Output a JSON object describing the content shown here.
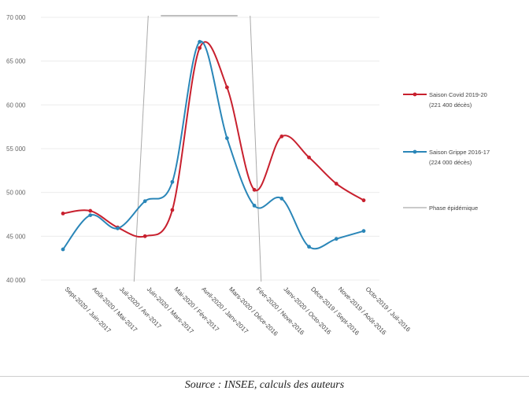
{
  "chart_data": {
    "type": "line",
    "categories": [
      "Sept-2020 / Juin-2017",
      "Août-2020 / Mai-2017",
      "Juil-2020 / Avr-2017",
      "Juin-2020 / Mars-2017",
      "Mai-2020 / Févr-2017",
      "Avril-2020 / Janv-2017",
      "Mars-2020 / Déce-2016",
      "Févr-2020 / Nove-2016",
      "Janv-2020 / Octo-2016",
      "Déce-2019 / Sept-2016",
      "Nove-2019 / Août-2016",
      "Octo-2019 / Juil-2016"
    ],
    "ylim": [
      40000,
      70000
    ],
    "yticks": [
      "40 000",
      "45 000",
      "50 000",
      "55 000",
      "60 000",
      "65 000",
      "70 000"
    ],
    "series": [
      {
        "name": "Saison Covid 2019-20",
        "name_line2": "(221 400 décès)",
        "color": "#c8202e",
        "values": [
          47600,
          47900,
          46000,
          45000,
          48000,
          66500,
          62000,
          50300,
          56400,
          54000,
          51000,
          49100
        ]
      },
      {
        "name": "Saison Grippe 2016-17",
        "name_line2": "(224 000 décès)",
        "color": "#2a86b8",
        "values": [
          43500,
          47400,
          45900,
          49000,
          51200,
          67200,
          56200,
          48500,
          49300,
          43800,
          44700,
          45600
        ]
      }
    ],
    "phase": {
      "name": "Phase épidémique",
      "color": "#aaaaaa",
      "start_index": 3,
      "end_index": 7
    },
    "legend_position": "right"
  },
  "source": "Source : INSEE, calculs des auteurs"
}
